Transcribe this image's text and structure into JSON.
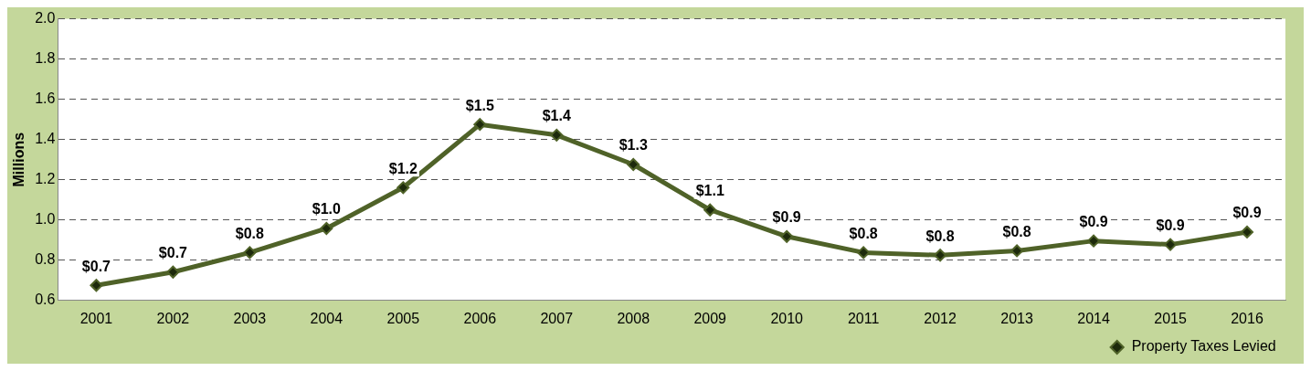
{
  "chart_data": {
    "type": "line",
    "ylabel": "Millions",
    "categories": [
      "2001",
      "2002",
      "2003",
      "2004",
      "2005",
      "2006",
      "2007",
      "2008",
      "2009",
      "2010",
      "2011",
      "2012",
      "2013",
      "2014",
      "2015",
      "2016"
    ],
    "series": [
      {
        "name": "Property Taxes Levied",
        "color": "#4f6228",
        "values": [
          0.675,
          0.741,
          0.838,
          0.958,
          1.161,
          1.475,
          1.422,
          1.276,
          1.05,
          0.918,
          0.838,
          0.825,
          0.847,
          0.896,
          0.878,
          0.94
        ],
        "value_labels": [
          "$0.7",
          "$0.7",
          "$0.8",
          "$1.0",
          "$1.2",
          "$1.5",
          "$1.4",
          "$1.3",
          "$1.1",
          "$0.9",
          "$0.8",
          "$0.8",
          "$0.8",
          "$0.9",
          "$0.9",
          "$0.9"
        ]
      }
    ],
    "ylim": [
      0.6,
      2.0
    ],
    "yticks": [
      {
        "value": 0.6,
        "label": "0.6"
      },
      {
        "value": 0.8,
        "label": "0.8"
      },
      {
        "value": 1.0,
        "label": "1.0"
      },
      {
        "value": 1.2,
        "label": "1.2"
      },
      {
        "value": 1.4,
        "label": "1.4"
      },
      {
        "value": 1.6,
        "label": "1.6"
      },
      {
        "value": 1.8,
        "label": "1.8"
      },
      {
        "value": 2.0,
        "label": "2.0"
      }
    ],
    "grid": "y",
    "legend": "bottom right",
    "marker": "diamond",
    "line_style": "solid"
  }
}
